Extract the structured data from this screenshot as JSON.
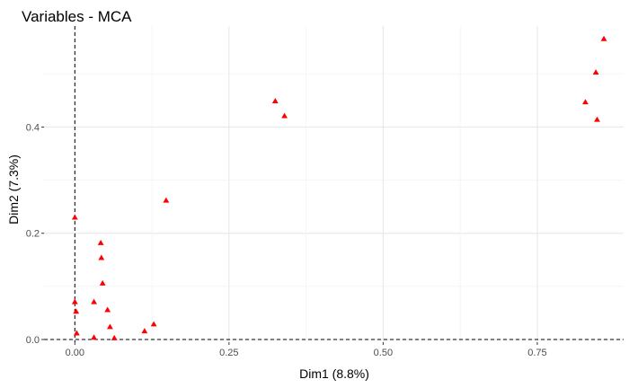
{
  "chart_data": {
    "type": "scatter",
    "title": "Variables - MCA",
    "xlabel": "Dim1 (8.8%)",
    "ylabel": "Dim2 (7.3%)",
    "xlim": [
      -0.05,
      0.89
    ],
    "ylim": [
      -0.005,
      0.59
    ],
    "xticks": [
      0.0,
      0.25,
      0.5,
      0.75
    ],
    "xtick_labels": [
      "0.00",
      "0.25",
      "0.50",
      "0.75"
    ],
    "yticks": [
      0.0,
      0.2,
      0.4
    ],
    "ytick_labels": [
      "0.0",
      "0.2",
      "0.4"
    ],
    "grid": true,
    "reference_lines": {
      "x": 0,
      "y": 0,
      "style": "dashed"
    },
    "marker": {
      "shape": "triangle",
      "color": "#ff0000"
    },
    "points": [
      {
        "x": 0.0,
        "y": 0.23
      },
      {
        "x": 0.0,
        "y": 0.071
      },
      {
        "x": 0.002,
        "y": 0.053
      },
      {
        "x": 0.003,
        "y": 0.012
      },
      {
        "x": 0.031,
        "y": 0.071
      },
      {
        "x": 0.031,
        "y": 0.004
      },
      {
        "x": 0.042,
        "y": 0.182
      },
      {
        "x": 0.043,
        "y": 0.154
      },
      {
        "x": 0.045,
        "y": 0.106
      },
      {
        "x": 0.053,
        "y": 0.056
      },
      {
        "x": 0.057,
        "y": 0.024
      },
      {
        "x": 0.064,
        "y": 0.003
      },
      {
        "x": 0.113,
        "y": 0.016
      },
      {
        "x": 0.128,
        "y": 0.029
      },
      {
        "x": 0.148,
        "y": 0.262
      },
      {
        "x": 0.325,
        "y": 0.449
      },
      {
        "x": 0.34,
        "y": 0.421
      },
      {
        "x": 0.828,
        "y": 0.447
      },
      {
        "x": 0.845,
        "y": 0.503
      },
      {
        "x": 0.847,
        "y": 0.414
      },
      {
        "x": 0.858,
        "y": 0.566
      }
    ]
  }
}
